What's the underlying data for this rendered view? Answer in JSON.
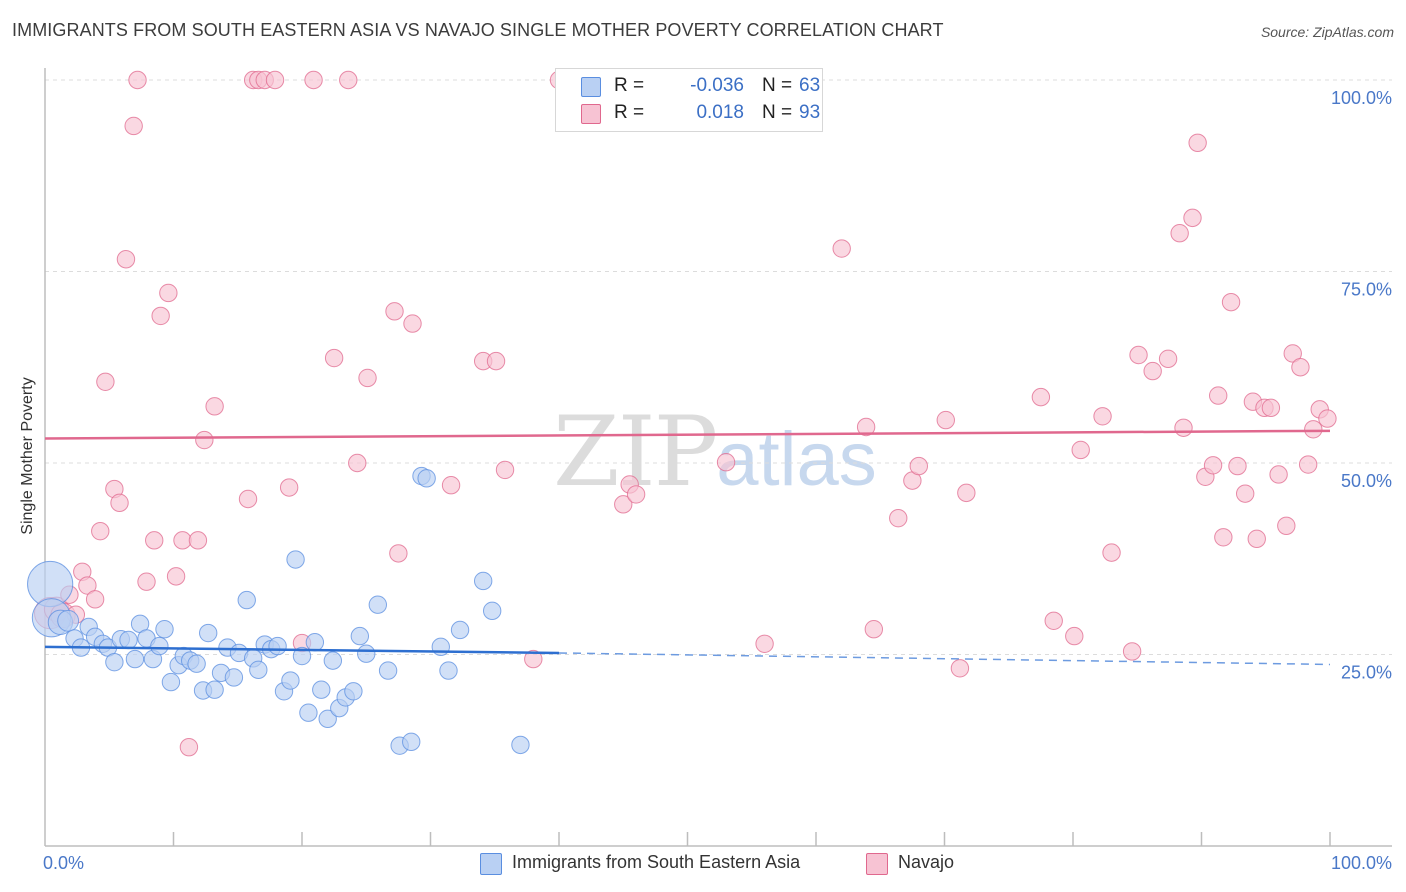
{
  "title": "IMMIGRANTS FROM SOUTH EASTERN ASIA VS NAVAJO SINGLE MOTHER POVERTY CORRELATION CHART",
  "source": "Source: ZipAtlas.com",
  "watermark": {
    "zip": "ZIP",
    "atlas": "atlas"
  },
  "colors": {
    "blue": "#5a8ee0",
    "blue_fill": "#b9d0f3",
    "pink": "#e0688e",
    "pink_fill": "#f7c3d3",
    "axis_text": "#4a78c8"
  },
  "legend": {
    "rows": [
      {
        "r_label": "R =",
        "r_value": "-0.036",
        "n_label": "N =",
        "n_value": "63"
      },
      {
        "r_label": "R =",
        "r_value": "0.018",
        "n_label": "N =",
        "n_value": "93"
      }
    ]
  },
  "bottom_legend": {
    "series1": "Immigrants from South Eastern Asia",
    "series2": "Navajo"
  },
  "chart_data": {
    "type": "scatter",
    "title": "IMMIGRANTS FROM SOUTH EASTERN ASIA VS NAVAJO SINGLE MOTHER POVERTY CORRELATION CHART",
    "xlabel": "",
    "ylabel": "Single Mother Poverty",
    "xlim": [
      0,
      100
    ],
    "ylim": [
      0,
      102
    ],
    "x_tick_labels": [
      "0.0%",
      "100.0%"
    ],
    "y_ticks": [
      25,
      50,
      75,
      100
    ],
    "y_tick_labels": [
      "25.0%",
      "50.0%",
      "75.0%",
      "100.0%"
    ],
    "grid": true,
    "series": [
      {
        "name": "Immigrants from South Eastern Asia",
        "color": "#5a8ee0",
        "r": -0.036,
        "n": 63,
        "trend": {
          "x0": 0,
          "y0": 26.0,
          "x1": 40,
          "y1": 25.2,
          "dashed_to_x": 100,
          "dashed_to_y": 23.7
        },
        "points": [
          [
            0.4,
            34.2,
            26
          ],
          [
            0.5,
            29.8,
            22
          ],
          [
            1.2,
            29.2,
            14
          ],
          [
            1.8,
            29.4,
            12
          ],
          [
            2.3,
            27.1,
            10
          ],
          [
            2.8,
            25.9,
            10
          ],
          [
            3.4,
            28.6,
            10
          ],
          [
            3.9,
            27.3,
            10
          ],
          [
            4.5,
            26.4,
            10
          ],
          [
            4.9,
            25.9,
            10
          ],
          [
            5.4,
            24.0,
            10
          ],
          [
            5.9,
            27.0,
            10
          ],
          [
            6.5,
            26.9,
            10
          ],
          [
            7.0,
            24.4,
            10
          ],
          [
            7.4,
            29.0,
            10
          ],
          [
            7.9,
            27.1,
            10
          ],
          [
            8.4,
            24.4,
            10
          ],
          [
            8.9,
            26.1,
            10
          ],
          [
            9.3,
            28.3,
            10
          ],
          [
            9.8,
            21.4,
            10
          ],
          [
            10.4,
            23.6,
            10
          ],
          [
            10.8,
            24.8,
            10
          ],
          [
            11.3,
            24.2,
            10
          ],
          [
            11.8,
            23.8,
            10
          ],
          [
            12.3,
            20.3,
            10
          ],
          [
            12.7,
            27.8,
            10
          ],
          [
            13.2,
            20.4,
            10
          ],
          [
            13.7,
            22.6,
            10
          ],
          [
            14.2,
            25.9,
            10
          ],
          [
            14.7,
            22.0,
            10
          ],
          [
            15.1,
            25.2,
            10
          ],
          [
            15.7,
            32.1,
            10
          ],
          [
            16.2,
            24.5,
            10
          ],
          [
            16.6,
            23.0,
            10
          ],
          [
            17.1,
            26.3,
            10
          ],
          [
            17.6,
            25.7,
            10
          ],
          [
            18.1,
            26.1,
            10
          ],
          [
            18.6,
            20.2,
            10
          ],
          [
            19.1,
            21.6,
            10
          ],
          [
            19.5,
            37.4,
            10
          ],
          [
            20.0,
            24.8,
            10
          ],
          [
            20.5,
            17.4,
            10
          ],
          [
            21.0,
            26.6,
            10
          ],
          [
            21.5,
            20.4,
            10
          ],
          [
            22.0,
            16.6,
            10
          ],
          [
            22.4,
            24.2,
            10
          ],
          [
            22.9,
            18.0,
            10
          ],
          [
            23.4,
            19.4,
            10
          ],
          [
            24.0,
            20.2,
            10
          ],
          [
            24.5,
            27.4,
            10
          ],
          [
            25.0,
            25.1,
            10
          ],
          [
            25.9,
            31.5,
            10
          ],
          [
            26.7,
            22.9,
            10
          ],
          [
            27.6,
            13.1,
            10
          ],
          [
            28.5,
            13.6,
            10
          ],
          [
            29.3,
            48.3,
            10
          ],
          [
            29.7,
            48.0,
            10
          ],
          [
            30.8,
            26.0,
            10
          ],
          [
            31.4,
            22.9,
            10
          ],
          [
            32.3,
            28.2,
            10
          ],
          [
            34.1,
            34.6,
            10
          ],
          [
            34.8,
            30.7,
            10
          ],
          [
            37.0,
            13.2,
            10
          ]
        ]
      },
      {
        "name": "Navajo",
        "color": "#e0688e",
        "r": 0.018,
        "n": 93,
        "trend": {
          "x0": 0,
          "y0": 53.2,
          "x1": 100,
          "y1": 54.2
        },
        "points": [
          [
            0.4,
            30.4,
            18
          ],
          [
            0.9,
            30.9,
            14
          ],
          [
            1.4,
            30.1,
            14
          ],
          [
            1.9,
            32.8,
            10
          ],
          [
            2.4,
            30.2,
            10
          ],
          [
            2.9,
            35.8,
            10
          ],
          [
            3.3,
            34.0,
            10
          ],
          [
            3.9,
            32.2,
            10
          ],
          [
            4.3,
            41.1,
            10
          ],
          [
            4.7,
            60.6,
            10
          ],
          [
            5.4,
            46.6,
            10
          ],
          [
            5.8,
            44.8,
            10
          ],
          [
            6.3,
            76.6,
            10
          ],
          [
            6.9,
            94.0,
            10
          ],
          [
            7.2,
            100.0,
            10
          ],
          [
            7.9,
            34.5,
            10
          ],
          [
            8.5,
            39.9,
            10
          ],
          [
            9.0,
            69.2,
            10
          ],
          [
            9.6,
            72.2,
            10
          ],
          [
            10.2,
            35.2,
            10
          ],
          [
            10.7,
            39.9,
            10
          ],
          [
            11.2,
            12.9,
            10
          ],
          [
            11.9,
            39.9,
            10
          ],
          [
            12.4,
            53.0,
            10
          ],
          [
            13.2,
            57.4,
            10
          ],
          [
            15.8,
            45.3,
            10
          ],
          [
            16.2,
            100.0,
            10
          ],
          [
            16.6,
            100.0,
            10
          ],
          [
            17.1,
            100.0,
            10
          ],
          [
            17.9,
            100.0,
            10
          ],
          [
            19.0,
            46.8,
            10
          ],
          [
            20.0,
            26.5,
            10
          ],
          [
            20.9,
            100.0,
            10
          ],
          [
            22.5,
            63.7,
            10
          ],
          [
            23.6,
            100.0,
            10
          ],
          [
            24.3,
            50.0,
            10
          ],
          [
            25.1,
            61.1,
            10
          ],
          [
            27.2,
            69.8,
            10
          ],
          [
            27.5,
            38.2,
            10
          ],
          [
            28.6,
            68.2,
            10
          ],
          [
            31.6,
            47.1,
            10
          ],
          [
            34.1,
            63.3,
            10
          ],
          [
            35.1,
            63.3,
            10
          ],
          [
            35.8,
            49.1,
            10
          ],
          [
            38.0,
            24.4,
            10
          ],
          [
            40.0,
            100.0,
            10
          ],
          [
            45.0,
            44.6,
            10
          ],
          [
            45.5,
            47.2,
            10
          ],
          [
            46.0,
            45.9,
            10
          ],
          [
            53.0,
            50.1,
            10
          ],
          [
            56.0,
            26.4,
            10
          ],
          [
            62.0,
            78.0,
            10
          ],
          [
            63.9,
            54.7,
            10
          ],
          [
            64.5,
            28.3,
            10
          ],
          [
            66.4,
            42.8,
            10
          ],
          [
            67.5,
            47.7,
            10
          ],
          [
            68.0,
            49.6,
            10
          ],
          [
            70.1,
            55.6,
            10
          ],
          [
            71.2,
            23.2,
            10
          ],
          [
            71.7,
            46.1,
            10
          ],
          [
            77.5,
            58.6,
            10
          ],
          [
            78.5,
            29.4,
            10
          ],
          [
            80.1,
            27.4,
            10
          ],
          [
            80.6,
            51.7,
            10
          ],
          [
            82.3,
            56.1,
            10
          ],
          [
            83.0,
            38.3,
            10
          ],
          [
            84.6,
            25.4,
            10
          ],
          [
            85.1,
            64.1,
            10
          ],
          [
            86.2,
            62.0,
            10
          ],
          [
            87.4,
            63.6,
            10
          ],
          [
            88.3,
            80.0,
            10
          ],
          [
            88.6,
            54.6,
            10
          ],
          [
            89.3,
            82.0,
            10
          ],
          [
            89.7,
            91.8,
            10
          ],
          [
            90.3,
            48.2,
            10
          ],
          [
            90.9,
            49.7,
            10
          ],
          [
            91.3,
            58.8,
            10
          ],
          [
            91.7,
            40.3,
            10
          ],
          [
            92.3,
            71.0,
            10
          ],
          [
            92.8,
            49.6,
            10
          ],
          [
            93.4,
            46.0,
            10
          ],
          [
            94.0,
            58.0,
            10
          ],
          [
            94.3,
            40.1,
            10
          ],
          [
            94.9,
            57.2,
            10
          ],
          [
            95.4,
            57.2,
            10
          ],
          [
            96.0,
            48.5,
            10
          ],
          [
            96.6,
            41.8,
            10
          ],
          [
            97.1,
            64.3,
            10
          ],
          [
            97.7,
            62.5,
            10
          ],
          [
            98.3,
            49.8,
            10
          ],
          [
            98.7,
            54.4,
            10
          ],
          [
            99.2,
            57.0,
            10
          ],
          [
            99.8,
            55.8,
            10
          ]
        ]
      }
    ]
  }
}
